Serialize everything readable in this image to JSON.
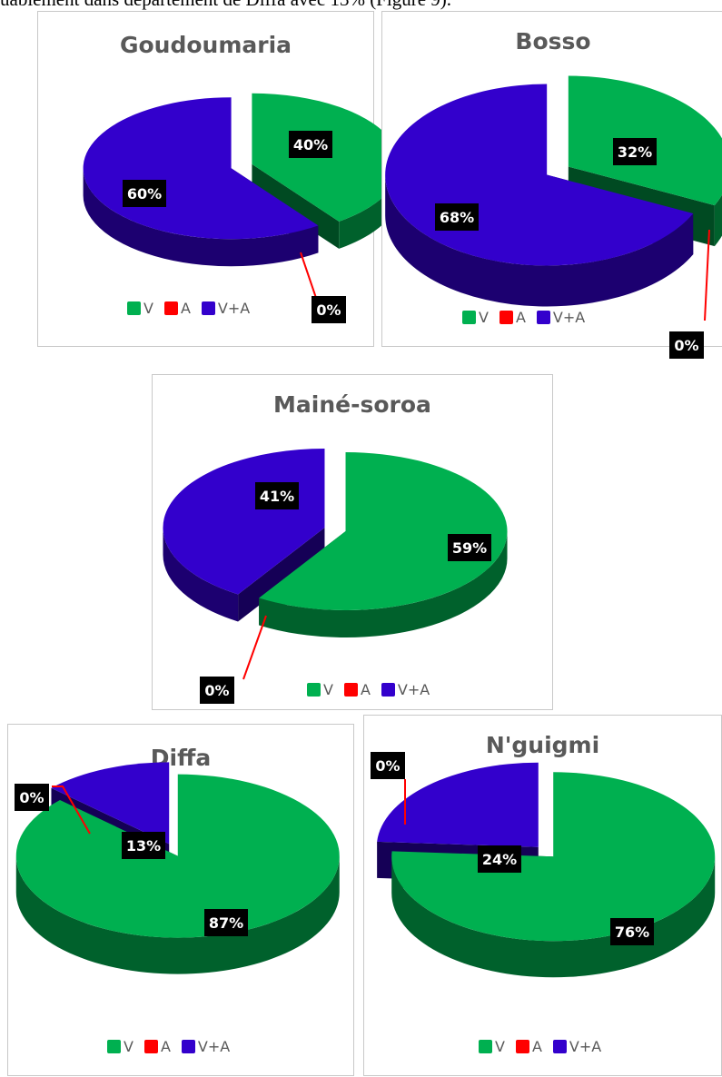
{
  "header_text": "uablement dans département de Diffa avec 13% (Figure 9).",
  "colors": {
    "V": "#00b050",
    "A": "#ff0000",
    "V+A": "#3300cc"
  },
  "chart_data": [
    {
      "type": "pie",
      "title": "Goudoumaria",
      "categories": [
        "V",
        "A",
        "V+A"
      ],
      "values": [
        40,
        0,
        60
      ],
      "labels": [
        "40%",
        "0%",
        "60%"
      ],
      "legend": "bottom",
      "style": "3d-exploded"
    },
    {
      "type": "pie",
      "title": "Bosso",
      "categories": [
        "V",
        "A",
        "V+A"
      ],
      "values": [
        32,
        0,
        68
      ],
      "labels": [
        "32%",
        "0%",
        "68%"
      ],
      "legend": "bottom",
      "style": "3d-exploded"
    },
    {
      "type": "pie",
      "title": "Mainé-soroa",
      "categories": [
        "V",
        "A",
        "V+A"
      ],
      "values": [
        59,
        0,
        41
      ],
      "labels": [
        "59%",
        "0%",
        "41%"
      ],
      "legend": "bottom",
      "style": "3d-exploded"
    },
    {
      "type": "pie",
      "title": "Diffa",
      "categories": [
        "V",
        "A",
        "V+A"
      ],
      "values": [
        87,
        0,
        13
      ],
      "labels": [
        "87%",
        "0%",
        "13%"
      ],
      "legend": "bottom",
      "style": "3d-exploded"
    },
    {
      "type": "pie",
      "title": "N'guigmi",
      "categories": [
        "V",
        "A",
        "V+A"
      ],
      "values": [
        76,
        0,
        24
      ],
      "labels": [
        "76%",
        "0%",
        "24%"
      ],
      "legend": "bottom",
      "style": "3d-exploded"
    }
  ]
}
